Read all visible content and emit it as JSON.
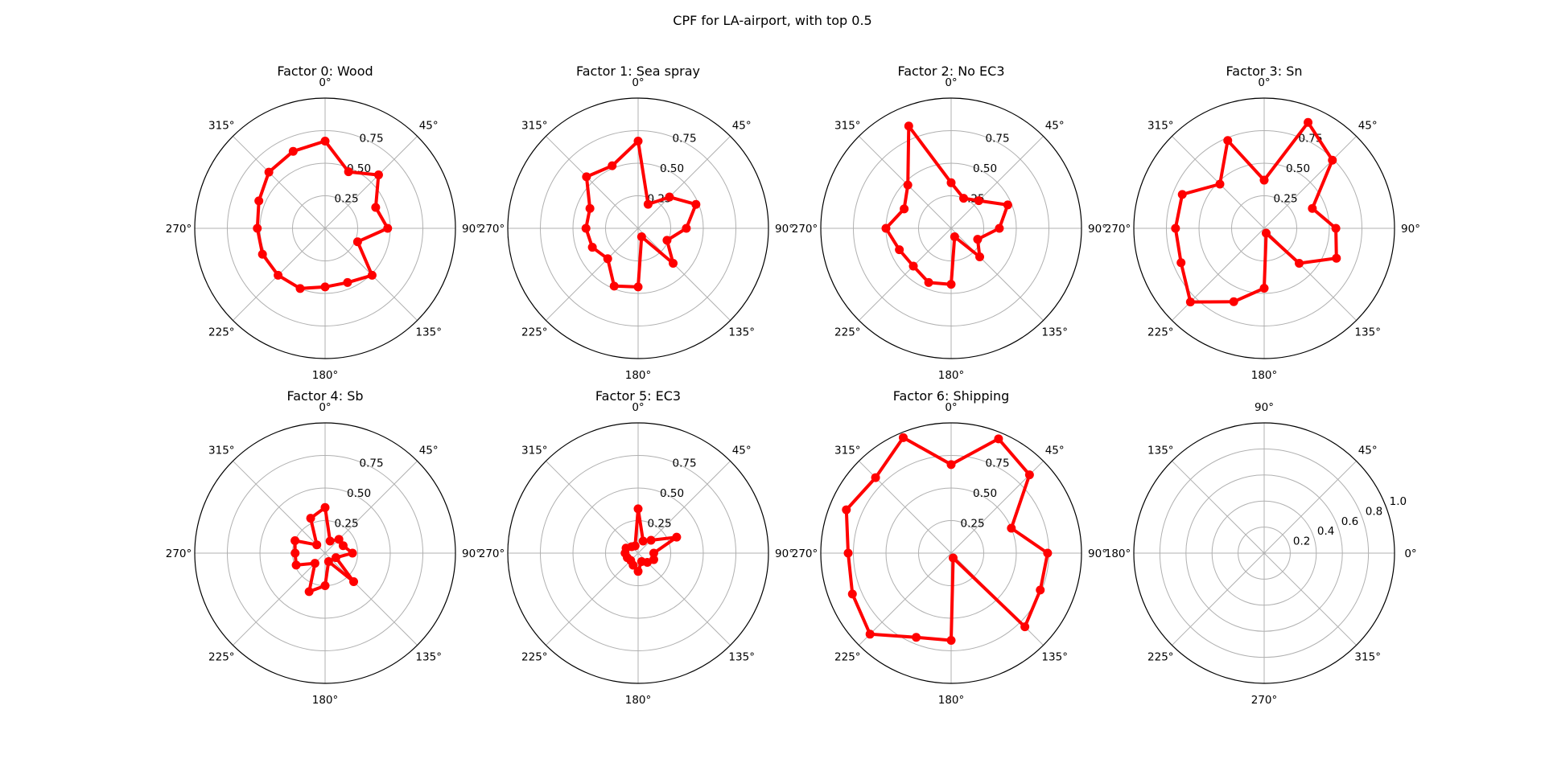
{
  "figure": {
    "suptitle": "CPF for LA-airport, with top 0.5"
  },
  "style": {
    "line_color": "#ff0000",
    "grid_color": "#b0b0b0",
    "frame_color": "#000000"
  },
  "chart_data": [
    {
      "type": "line",
      "projection": "polar",
      "title": "Factor 0: Wood",
      "theta_ticklabels": [
        "0°",
        "45°",
        "90°",
        "135°",
        "180°",
        "225°",
        "270°",
        "315°"
      ],
      "r_ticklabels": [
        "0.25",
        "0.50",
        "0.75"
      ],
      "rlim": [
        0,
        1.0
      ],
      "theta_zero": "N",
      "theta_direction": "clockwise",
      "series": [
        {
          "theta_deg": [
            0,
            22.5,
            45,
            67.5,
            90,
            112.5,
            135,
            157.5,
            180,
            202.5,
            225,
            247.5,
            270,
            292.5,
            315,
            337.5,
            0
          ],
          "r": [
            0.67,
            0.47,
            0.58,
            0.42,
            0.48,
            0.27,
            0.51,
            0.45,
            0.45,
            0.5,
            0.51,
            0.52,
            0.52,
            0.55,
            0.61,
            0.64,
            0.67
          ]
        }
      ]
    },
    {
      "type": "line",
      "projection": "polar",
      "title": "Factor 1: Sea spray",
      "theta_ticklabels": [
        "0°",
        "45°",
        "90°",
        "135°",
        "180°",
        "225°",
        "270°",
        "315°"
      ],
      "r_ticklabels": [
        "0.25",
        "0.50",
        "0.75"
      ],
      "rlim": [
        0,
        1.0
      ],
      "theta_zero": "N",
      "theta_direction": "clockwise",
      "series": [
        {
          "theta_deg": [
            0,
            22.5,
            45,
            67.5,
            90,
            112.5,
            135,
            157.5,
            180,
            202.5,
            225,
            247.5,
            270,
            292.5,
            315,
            337.5,
            0
          ],
          "r": [
            0.67,
            0.2,
            0.34,
            0.48,
            0.37,
            0.24,
            0.38,
            0.07,
            0.45,
            0.48,
            0.33,
            0.38,
            0.4,
            0.4,
            0.56,
            0.52,
            0.67
          ]
        }
      ]
    },
    {
      "type": "line",
      "projection": "polar",
      "title": "Factor 2: No EC3",
      "theta_ticklabels": [
        "0°",
        "45°",
        "90°",
        "135°",
        "180°",
        "225°",
        "270°",
        "315°"
      ],
      "r_ticklabels": [
        "0.25",
        "0.50",
        "0.75"
      ],
      "rlim": [
        0,
        1.0
      ],
      "theta_zero": "N",
      "theta_direction": "clockwise",
      "series": [
        {
          "theta_deg": [
            0,
            22.5,
            45,
            67.5,
            90,
            112.5,
            135,
            157.5,
            180,
            202.5,
            225,
            247.5,
            270,
            292.5,
            315,
            337.5,
            0
          ],
          "r": [
            0.35,
            0.25,
            0.3,
            0.47,
            0.37,
            0.22,
            0.31,
            0.07,
            0.43,
            0.45,
            0.41,
            0.43,
            0.5,
            0.39,
            0.47,
            0.85,
            0.35
          ]
        }
      ]
    },
    {
      "type": "line",
      "projection": "polar",
      "title": "Factor 3: Sn",
      "theta_ticklabels": [
        "0°",
        "45°",
        "90°",
        "135°",
        "180°",
        "225°",
        "270°",
        "315°"
      ],
      "r_ticklabels": [
        "0.25",
        "0.50",
        "0.75"
      ],
      "rlim": [
        0,
        1.0
      ],
      "theta_zero": "N",
      "theta_direction": "clockwise",
      "series": [
        {
          "theta_deg": [
            0,
            22.5,
            45,
            67.5,
            90,
            112.5,
            135,
            157.5,
            180,
            202.5,
            225,
            247.5,
            270,
            292.5,
            315,
            337.5,
            0
          ],
          "r": [
            0.37,
            0.88,
            0.74,
            0.4,
            0.55,
            0.6,
            0.38,
            0.04,
            0.46,
            0.61,
            0.8,
            0.69,
            0.68,
            0.68,
            0.48,
            0.73,
            0.37
          ]
        }
      ]
    },
    {
      "type": "line",
      "projection": "polar",
      "title": "Factor 4: Sb",
      "theta_ticklabels": [
        "0°",
        "45°",
        "90°",
        "135°",
        "180°",
        "225°",
        "270°",
        "315°"
      ],
      "r_ticklabels": [
        "0.25",
        "0.50",
        "0.75"
      ],
      "rlim": [
        0,
        1.0
      ],
      "theta_zero": "N",
      "theta_direction": "clockwise",
      "series": [
        {
          "theta_deg": [
            0,
            22.5,
            45,
            67.5,
            90,
            112.5,
            135,
            157.5,
            180,
            202.5,
            225,
            247.5,
            270,
            292.5,
            315,
            337.5,
            0
          ],
          "r": [
            0.35,
            0.1,
            0.15,
            0.15,
            0.21,
            0.09,
            0.31,
            0.07,
            0.25,
            0.32,
            0.11,
            0.24,
            0.23,
            0.25,
            0.09,
            0.29,
            0.35
          ]
        }
      ]
    },
    {
      "type": "line",
      "projection": "polar",
      "title": "Factor 5: EC3",
      "theta_ticklabels": [
        "0°",
        "45°",
        "90°",
        "135°",
        "180°",
        "225°",
        "270°",
        "315°"
      ],
      "r_ticklabels": [
        "0.25",
        "0.50",
        "0.75"
      ],
      "rlim": [
        0,
        1.0
      ],
      "theta_zero": "N",
      "theta_direction": "clockwise",
      "series": [
        {
          "theta_deg": [
            0,
            22.5,
            45,
            67.5,
            90,
            112.5,
            135,
            157.5,
            180,
            202.5,
            225,
            247.5,
            270,
            292.5,
            315,
            337.5,
            0
          ],
          "r": [
            0.34,
            0.1,
            0.14,
            0.32,
            0.12,
            0.13,
            0.1,
            0.07,
            0.14,
            0.1,
            0.08,
            0.09,
            0.1,
            0.1,
            0.07,
            0.06,
            0.34
          ]
        }
      ]
    },
    {
      "type": "line",
      "projection": "polar",
      "title": "Factor 6: Shipping",
      "theta_ticklabels": [
        "0°",
        "45°",
        "90°",
        "135°",
        "180°",
        "225°",
        "270°",
        "315°"
      ],
      "r_ticklabels": [
        "0.25",
        "0.50",
        "0.75"
      ],
      "rlim": [
        0,
        1.0
      ],
      "theta_zero": "N",
      "theta_direction": "clockwise",
      "series": [
        {
          "theta_deg": [
            0,
            22.5,
            45,
            67.5,
            90,
            112.5,
            135,
            157.5,
            180,
            202.5,
            225,
            247.5,
            270,
            292.5,
            315,
            337.5,
            0
          ],
          "r": [
            0.68,
            0.95,
            0.85,
            0.5,
            0.74,
            0.74,
            0.8,
            0.04,
            0.67,
            0.7,
            0.88,
            0.82,
            0.79,
            0.87,
            0.82,
            0.96,
            0.68
          ]
        }
      ]
    },
    {
      "type": "line",
      "projection": "polar",
      "title": "",
      "theta_ticklabels": [
        "0°",
        "45°",
        "90°",
        "135°",
        "180°",
        "225°",
        "270°",
        "315°"
      ],
      "r_ticklabels": [
        "0.2",
        "0.4",
        "0.6",
        "0.8",
        "1.0"
      ],
      "rlim": [
        0,
        1.0
      ],
      "theta_zero": "E",
      "theta_direction": "counterclockwise",
      "series": []
    }
  ]
}
